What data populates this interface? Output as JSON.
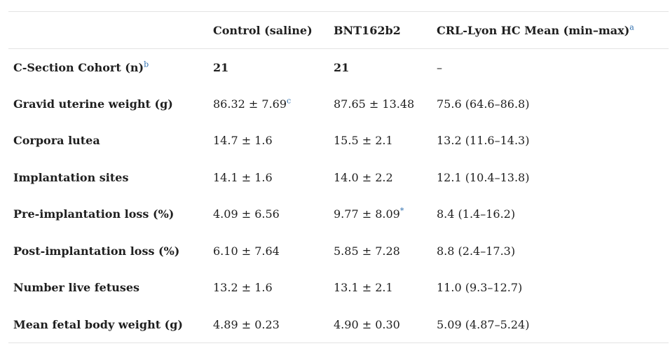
{
  "table": {
    "headers": {
      "col0": "",
      "col1": "Control (saline)",
      "col2": "BNT162b2",
      "col3": "CRL-Lyon HC Mean (min–max)",
      "col3_sup": "a"
    },
    "rows": [
      {
        "label": "C-Section Cohort (n)",
        "label_sup": "b",
        "control": "21",
        "control_sup": "",
        "bnt": "21",
        "bnt_sup": "",
        "hc": "–"
      },
      {
        "label": "Gravid uterine weight (g)",
        "label_sup": "",
        "control": "86.32 ± 7.69",
        "control_sup": "c",
        "bnt": "87.65 ± 13.48",
        "bnt_sup": "",
        "hc": "75.6 (64.6–86.8)"
      },
      {
        "label": "Corpora lutea",
        "label_sup": "",
        "control": "14.7 ± 1.6",
        "control_sup": "",
        "bnt": "15.5 ± 2.1",
        "bnt_sup": "",
        "hc": "13.2 (11.6–14.3)"
      },
      {
        "label": "Implantation sites",
        "label_sup": "",
        "control": "14.1 ± 1.6",
        "control_sup": "",
        "bnt": "14.0 ± 2.2",
        "bnt_sup": "",
        "hc": "12.1 (10.4–13.8)"
      },
      {
        "label": "Pre-implantation loss (%)",
        "label_sup": "",
        "control": "4.09 ± 6.56",
        "control_sup": "",
        "bnt": "9.77 ± 8.09",
        "bnt_sup": "*",
        "hc": "8.4 (1.4–16.2)"
      },
      {
        "label": "Post-implantation loss (%)",
        "label_sup": "",
        "control": "6.10 ± 7.64",
        "control_sup": "",
        "bnt": "5.85 ± 7.28",
        "bnt_sup": "",
        "hc": "8.8 (2.4–17.3)"
      },
      {
        "label": "Number live fetuses",
        "label_sup": "",
        "control": "13.2 ± 1.6",
        "control_sup": "",
        "bnt": "13.1 ± 2.1",
        "bnt_sup": "",
        "hc": "11.0 (9.3–12.7)"
      },
      {
        "label": "Mean fetal body weight (g)",
        "label_sup": "",
        "control": "4.89 ± 0.23",
        "control_sup": "",
        "bnt": "4.90 ± 0.30",
        "bnt_sup": "",
        "hc": "5.09 (4.87–5.24)"
      }
    ]
  },
  "colors": {
    "text": "#1f1f1f",
    "footnote": "#2f6fae",
    "rule": "#e3e3e3"
  }
}
